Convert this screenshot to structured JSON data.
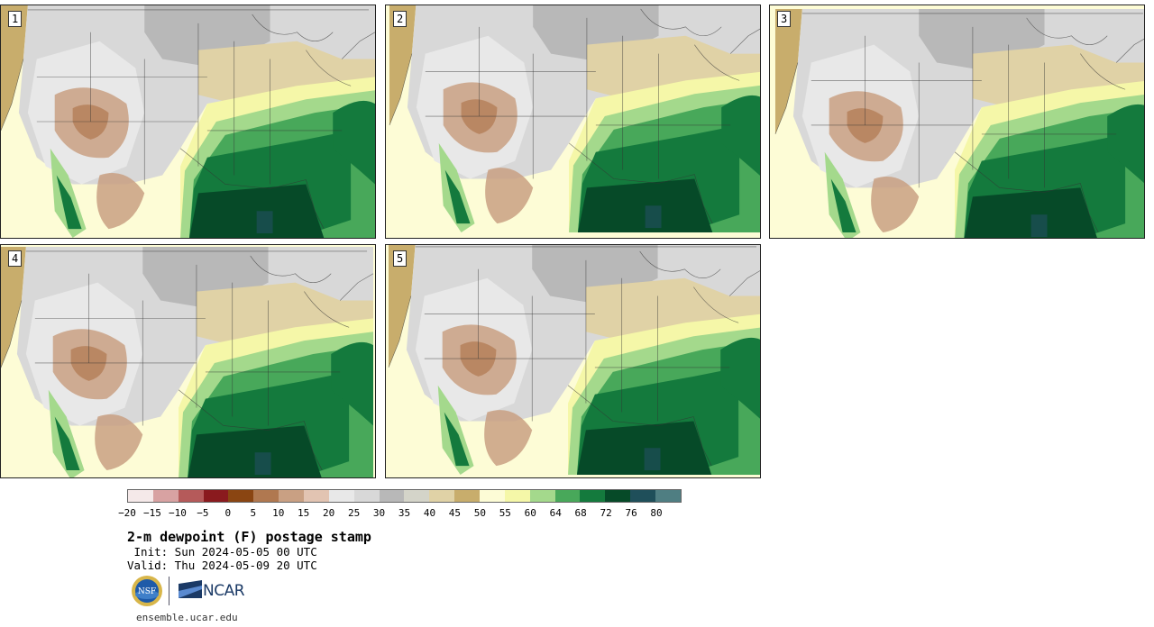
{
  "panels": [
    {
      "label": "1"
    },
    {
      "label": "2"
    },
    {
      "label": "3"
    },
    {
      "label": "4"
    },
    {
      "label": "5"
    }
  ],
  "colorbar": {
    "colors": [
      "#f5e9e9",
      "#d8a2a2",
      "#b55a5a",
      "#8a1a1e",
      "#8a4512",
      "#b07850",
      "#c9a083",
      "#e2c4b2",
      "#e8e8e8",
      "#d8d8d8",
      "#b8b8b8",
      "#d4d4c9",
      "#e0d2a6",
      "#c8ad6c",
      "#fdfcd6",
      "#f5f7a8",
      "#a4d98c",
      "#48a85a",
      "#147a3d",
      "#064a28",
      "#1f4f5a",
      "#4f7e82"
    ],
    "ticks": [
      "−20",
      "−15",
      "−10",
      "−5",
      "0",
      "5",
      "10",
      "15",
      "20",
      "25",
      "30",
      "35",
      "40",
      "45",
      "50",
      "55",
      "60",
      "64",
      "68",
      "72",
      "76",
      "80"
    ]
  },
  "title": "2-m dewpoint (F) postage stamp",
  "init_text": " Init: Sun 2024-05-05 00 UTC",
  "valid_text": "Valid: Thu 2024-05-09 20 UTC",
  "logos": {
    "nsf": "NSF",
    "ncar": "NCAR"
  },
  "site": "ensemble.ucar.edu"
}
